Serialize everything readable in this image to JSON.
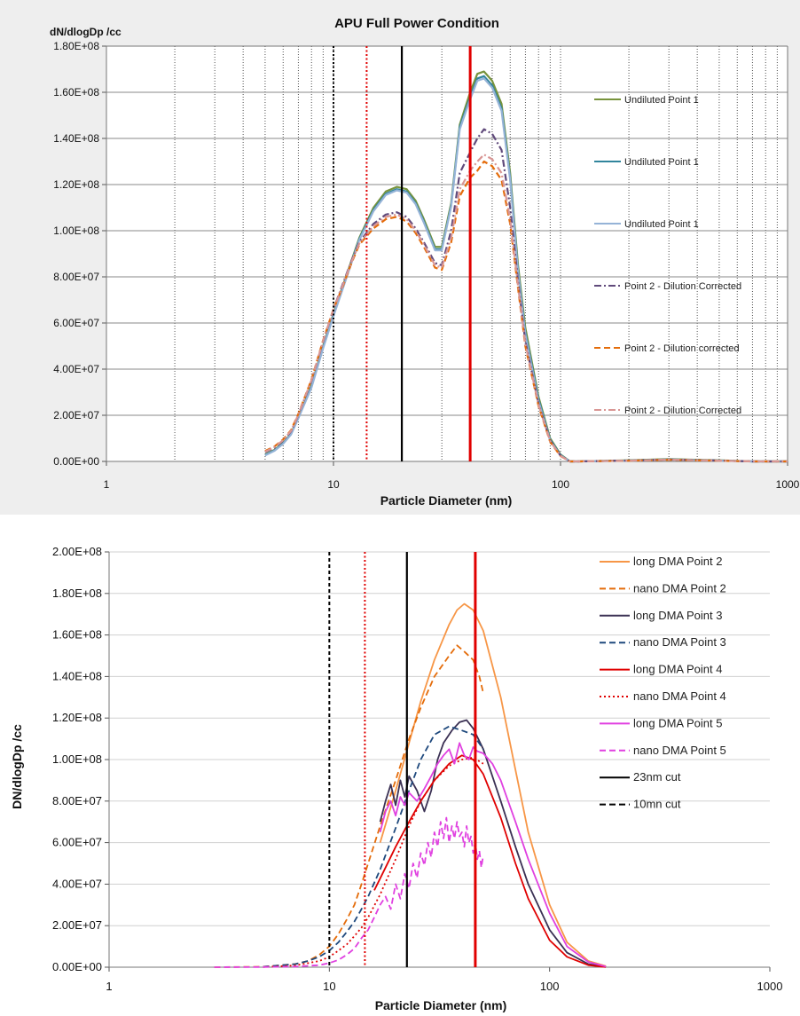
{
  "chart_data": [
    {
      "type": "line",
      "title": "APU Full Power Condition",
      "xlabel": "Particle Diameter (nm)",
      "ylabel": "dN/dlogDp /cc",
      "xscale": "log",
      "xlim": [
        1,
        1000
      ],
      "ylim": [
        0,
        180000000
      ],
      "x_ticks": [
        "1",
        "10",
        "100",
        "1000"
      ],
      "y_ticks": [
        "0.00E+00",
        "2.00E+07",
        "4.00E+07",
        "6.00E+07",
        "8.00E+07",
        "1.00E+08",
        "1.20E+08",
        "1.40E+08",
        "1.60E+08",
        "1.80E+08"
      ],
      "grid": {
        "x_minor": true,
        "y_major": true,
        "style": "dotted-vertical"
      },
      "legend": "right",
      "x": [
        5,
        5.5,
        6,
        6.5,
        7,
        8,
        9,
        10,
        11,
        12,
        13,
        15,
        17,
        19,
        21,
        23,
        25,
        28,
        30,
        33,
        36,
        40,
        43,
        46,
        50,
        55,
        60,
        65,
        70,
        80,
        90,
        100,
        110,
        120,
        200,
        300,
        500,
        700,
        1000
      ],
      "series": [
        {
          "name": "Undiluted Point 1",
          "color": "#77933c",
          "dash": "solid",
          "values": [
            3000000,
            5000000,
            8000000,
            12000000,
            19000000,
            33000000,
            50000000,
            64000000,
            76000000,
            87000000,
            97000000,
            110000000,
            117000000,
            119000000,
            118000000,
            113000000,
            105000000,
            93000000,
            93000000,
            112000000,
            146000000,
            160000000,
            168000000,
            169000000,
            165000000,
            155000000,
            125000000,
            85000000,
            58000000,
            28000000,
            10000000,
            3000000,
            0,
            0,
            500000,
            1000000,
            500000,
            0,
            0
          ]
        },
        {
          "name": "Undiluted Point 1",
          "color": "#31859c",
          "dash": "solid",
          "values": [
            2800000,
            4800000,
            7800000,
            11800000,
            18800000,
            32500000,
            49500000,
            63500000,
            75500000,
            86500000,
            96500000,
            109000000,
            116000000,
            118000000,
            117000000,
            112000000,
            104000000,
            92000000,
            92000000,
            111000000,
            145000000,
            158000000,
            166000000,
            167000000,
            163000000,
            153000000,
            123000000,
            83000000,
            56000000,
            27000000,
            9500000,
            2800000,
            0,
            0,
            400000,
            900000,
            400000,
            0,
            0
          ]
        },
        {
          "name": "Undiluted Point 1",
          "color": "#95b3d7",
          "dash": "solid",
          "values": [
            2600000,
            4600000,
            7600000,
            11600000,
            18600000,
            32000000,
            49000000,
            63000000,
            75000000,
            86000000,
            96000000,
            108500000,
            115500000,
            117500000,
            116500000,
            111500000,
            103500000,
            91500000,
            91500000,
            110500000,
            144000000,
            157000000,
            165000000,
            166000000,
            162000000,
            152000000,
            122000000,
            82000000,
            55000000,
            26000000,
            9000000,
            2500000,
            0,
            0,
            300000,
            800000,
            300000,
            0,
            0
          ]
        },
        {
          "name": "Point 2 - Dilution Corrected",
          "color": "#604a7b",
          "dash": "dashdot",
          "values": [
            4000000,
            6000000,
            9000000,
            13000000,
            20000000,
            35000000,
            52000000,
            66000000,
            77000000,
            87000000,
            95000000,
            103000000,
            107000000,
            108000000,
            106000000,
            101000000,
            95000000,
            86000000,
            85000000,
            100000000,
            125000000,
            134000000,
            140000000,
            144000000,
            142000000,
            135000000,
            110000000,
            78000000,
            52000000,
            25000000,
            9000000,
            2500000,
            0,
            0,
            400000,
            800000,
            400000,
            0,
            0
          ]
        },
        {
          "name": "Point 2 - Dilution corrected",
          "color": "#e46c0a",
          "dash": "dash",
          "values": [
            4500000,
            6500000,
            9500000,
            13500000,
            20500000,
            35500000,
            52500000,
            66000000,
            76000000,
            86000000,
            94000000,
            101000000,
            105000000,
            106000000,
            104000000,
            99000000,
            93000000,
            84000000,
            83000000,
            95000000,
            115000000,
            123000000,
            126000000,
            130000000,
            128000000,
            122000000,
            103000000,
            75000000,
            50000000,
            24000000,
            8500000,
            2300000,
            0,
            0,
            300000,
            700000,
            300000,
            0,
            0
          ]
        },
        {
          "name": "Point 2 - Dilution Corrected",
          "color": "#d99694",
          "dash": "dashdot",
          "values": [
            4200000,
            6200000,
            9200000,
            13200000,
            20200000,
            35200000,
            52200000,
            65800000,
            76500000,
            86500000,
            94500000,
            102000000,
            106000000,
            107000000,
            105000000,
            100000000,
            94000000,
            85000000,
            84000000,
            97000000,
            118000000,
            126000000,
            130000000,
            133000000,
            131000000,
            125000000,
            105000000,
            76000000,
            51000000,
            24500000,
            8800000,
            2400000,
            0,
            0,
            350000,
            750000,
            350000,
            0,
            0
          ]
        }
      ],
      "cut_lines": [
        {
          "x": 10,
          "color": "#000000",
          "dash": "dot"
        },
        {
          "x": 14,
          "color": "#e00000",
          "dash": "dot"
        },
        {
          "x": 20,
          "color": "#000000",
          "dash": "solid"
        },
        {
          "x": 40,
          "color": "#e00000",
          "dash": "solid"
        }
      ]
    },
    {
      "type": "line",
      "title": "",
      "xlabel": "Particle Diameter (nm)",
      "ylabel": "DN/dlogDp /cc",
      "xscale": "log",
      "xlim": [
        1,
        1000
      ],
      "ylim": [
        0,
        200000000
      ],
      "x_ticks": [
        "1",
        "10",
        "100",
        "1000"
      ],
      "y_ticks": [
        "0.00E+00",
        "2.00E+07",
        "4.00E+07",
        "6.00E+07",
        "8.00E+07",
        "1.00E+08",
        "1.20E+08",
        "1.40E+08",
        "1.60E+08",
        "1.80E+08",
        "2.00E+08"
      ],
      "grid": {
        "y_major": true
      },
      "legend": "top-right",
      "series": [
        {
          "name": "long DMA Point 2",
          "color": "#f79646",
          "dash": "solid",
          "x": [
            17,
            20,
            23,
            26,
            30,
            35,
            38,
            41,
            45,
            50,
            60,
            70,
            80,
            100,
            120,
            150,
            180
          ],
          "values": [
            60000000,
            85000000,
            108000000,
            128000000,
            148000000,
            165000000,
            172000000,
            175000000,
            172000000,
            162000000,
            130000000,
            95000000,
            65000000,
            30000000,
            12000000,
            3000000,
            500000
          ]
        },
        {
          "name": "nano DMA Point 2",
          "color": "#e46c0a",
          "dash": "dash",
          "x": [
            3,
            5,
            7,
            8,
            9,
            10,
            11,
            12,
            13,
            14,
            15,
            17,
            20,
            23,
            26,
            30,
            35,
            38,
            41,
            45,
            48,
            50
          ],
          "values": [
            0,
            200000,
            1500000,
            3000000,
            6000000,
            10000000,
            16000000,
            23000000,
            30000000,
            40000000,
            50000000,
            68000000,
            90000000,
            110000000,
            125000000,
            140000000,
            150000000,
            155000000,
            152000000,
            148000000,
            140000000,
            132000000
          ]
        },
        {
          "name": "long DMA Point 3",
          "color": "#3b3154",
          "dash": "solid",
          "x": [
            17,
            18,
            19,
            20,
            21,
            22,
            23,
            25,
            27,
            29,
            31,
            33,
            36,
            39,
            42,
            45,
            50,
            60,
            70,
            80,
            100,
            120,
            150,
            180
          ],
          "values": [
            70000000,
            80000000,
            88000000,
            78000000,
            90000000,
            82000000,
            92000000,
            85000000,
            75000000,
            85000000,
            100000000,
            108000000,
            114000000,
            118000000,
            119000000,
            115000000,
            105000000,
            80000000,
            58000000,
            40000000,
            18000000,
            7000000,
            1500000,
            200000
          ]
        },
        {
          "name": "nano DMA Point 3",
          "color": "#1f497d",
          "dash": "dash",
          "x": [
            5,
            7,
            8,
            9,
            10,
            11,
            12,
            13,
            14,
            15,
            17,
            20,
            23,
            26,
            30,
            35,
            40,
            45,
            50
          ],
          "values": [
            200000,
            1500000,
            3000000,
            5000000,
            8000000,
            12000000,
            17000000,
            22000000,
            28000000,
            34000000,
            47000000,
            67000000,
            85000000,
            100000000,
            112000000,
            116000000,
            114000000,
            112000000,
            105000000
          ]
        },
        {
          "name": "long DMA Point 4",
          "color": "#e00000",
          "dash": "solid",
          "x": [
            16,
            18,
            20,
            23,
            26,
            30,
            35,
            40,
            45,
            50,
            60,
            70,
            80,
            100,
            120,
            150,
            180
          ],
          "values": [
            37000000,
            48000000,
            58000000,
            70000000,
            80000000,
            90000000,
            98000000,
            102000000,
            100000000,
            93000000,
            72000000,
            50000000,
            33000000,
            13000000,
            5000000,
            1000000,
            100000
          ]
        },
        {
          "name": "nano DMA Point 4",
          "color": "#e00000",
          "dash": "dot",
          "x": [
            5,
            7,
            9,
            10,
            11,
            12,
            13,
            14,
            15,
            17,
            20,
            23,
            26,
            30,
            35,
            40,
            45,
            50
          ],
          "values": [
            100000,
            800000,
            3000000,
            5000000,
            8000000,
            11000000,
            15000000,
            19000000,
            24000000,
            35000000,
            52000000,
            68000000,
            80000000,
            90000000,
            97000000,
            100000000,
            101000000,
            98000000
          ]
        },
        {
          "name": "long DMA Point 5",
          "color": "#e040e0",
          "dash": "solid",
          "x": [
            17,
            18,
            19,
            20,
            21,
            22,
            23,
            25,
            27,
            29,
            31,
            33,
            35,
            37,
            39,
            41,
            43,
            45,
            47,
            50,
            55,
            60,
            70,
            80,
            100,
            120,
            150,
            180
          ],
          "values": [
            65000000,
            75000000,
            80000000,
            73000000,
            82000000,
            78000000,
            84000000,
            80000000,
            86000000,
            92000000,
            98000000,
            102000000,
            105000000,
            98000000,
            108000000,
            102000000,
            100000000,
            106000000,
            104000000,
            103000000,
            98000000,
            90000000,
            70000000,
            52000000,
            26000000,
            10000000,
            2500000,
            300000
          ]
        },
        {
          "name": "nano DMA Point 5",
          "color": "#e040e0",
          "dash": "dash",
          "x": [
            3,
            5,
            7,
            9,
            10,
            11,
            12,
            13,
            14,
            15,
            16,
            17,
            18,
            19,
            20,
            21,
            22,
            23,
            24,
            25,
            26,
            27,
            28,
            29,
            30,
            31,
            32,
            33,
            34,
            35,
            36,
            37,
            38,
            39,
            40,
            41,
            42,
            43,
            44,
            45,
            46,
            47,
            48,
            49,
            50
          ],
          "values": [
            0,
            100000,
            300000,
            1000000,
            2000000,
            3500000,
            6000000,
            9000000,
            14000000,
            18000000,
            24000000,
            30000000,
            34000000,
            28000000,
            40000000,
            33000000,
            45000000,
            38000000,
            50000000,
            43000000,
            55000000,
            49000000,
            60000000,
            53000000,
            65000000,
            58000000,
            70000000,
            62000000,
            72000000,
            60000000,
            68000000,
            62000000,
            70000000,
            63000000,
            65000000,
            58000000,
            68000000,
            60000000,
            63000000,
            55000000,
            60000000,
            52000000,
            56000000,
            48000000,
            54000000
          ]
        }
      ],
      "cut_lines": [
        {
          "name": "23nm cut",
          "x": 22.5,
          "color": "#000000",
          "dash": "solid"
        },
        {
          "name": "10mn cut",
          "x": 10,
          "color": "#000000",
          "dash": "dash"
        },
        {
          "x": 14.5,
          "color": "#e00000",
          "dash": "dot"
        },
        {
          "x": 46,
          "color": "#e00000",
          "dash": "solid"
        }
      ]
    }
  ]
}
